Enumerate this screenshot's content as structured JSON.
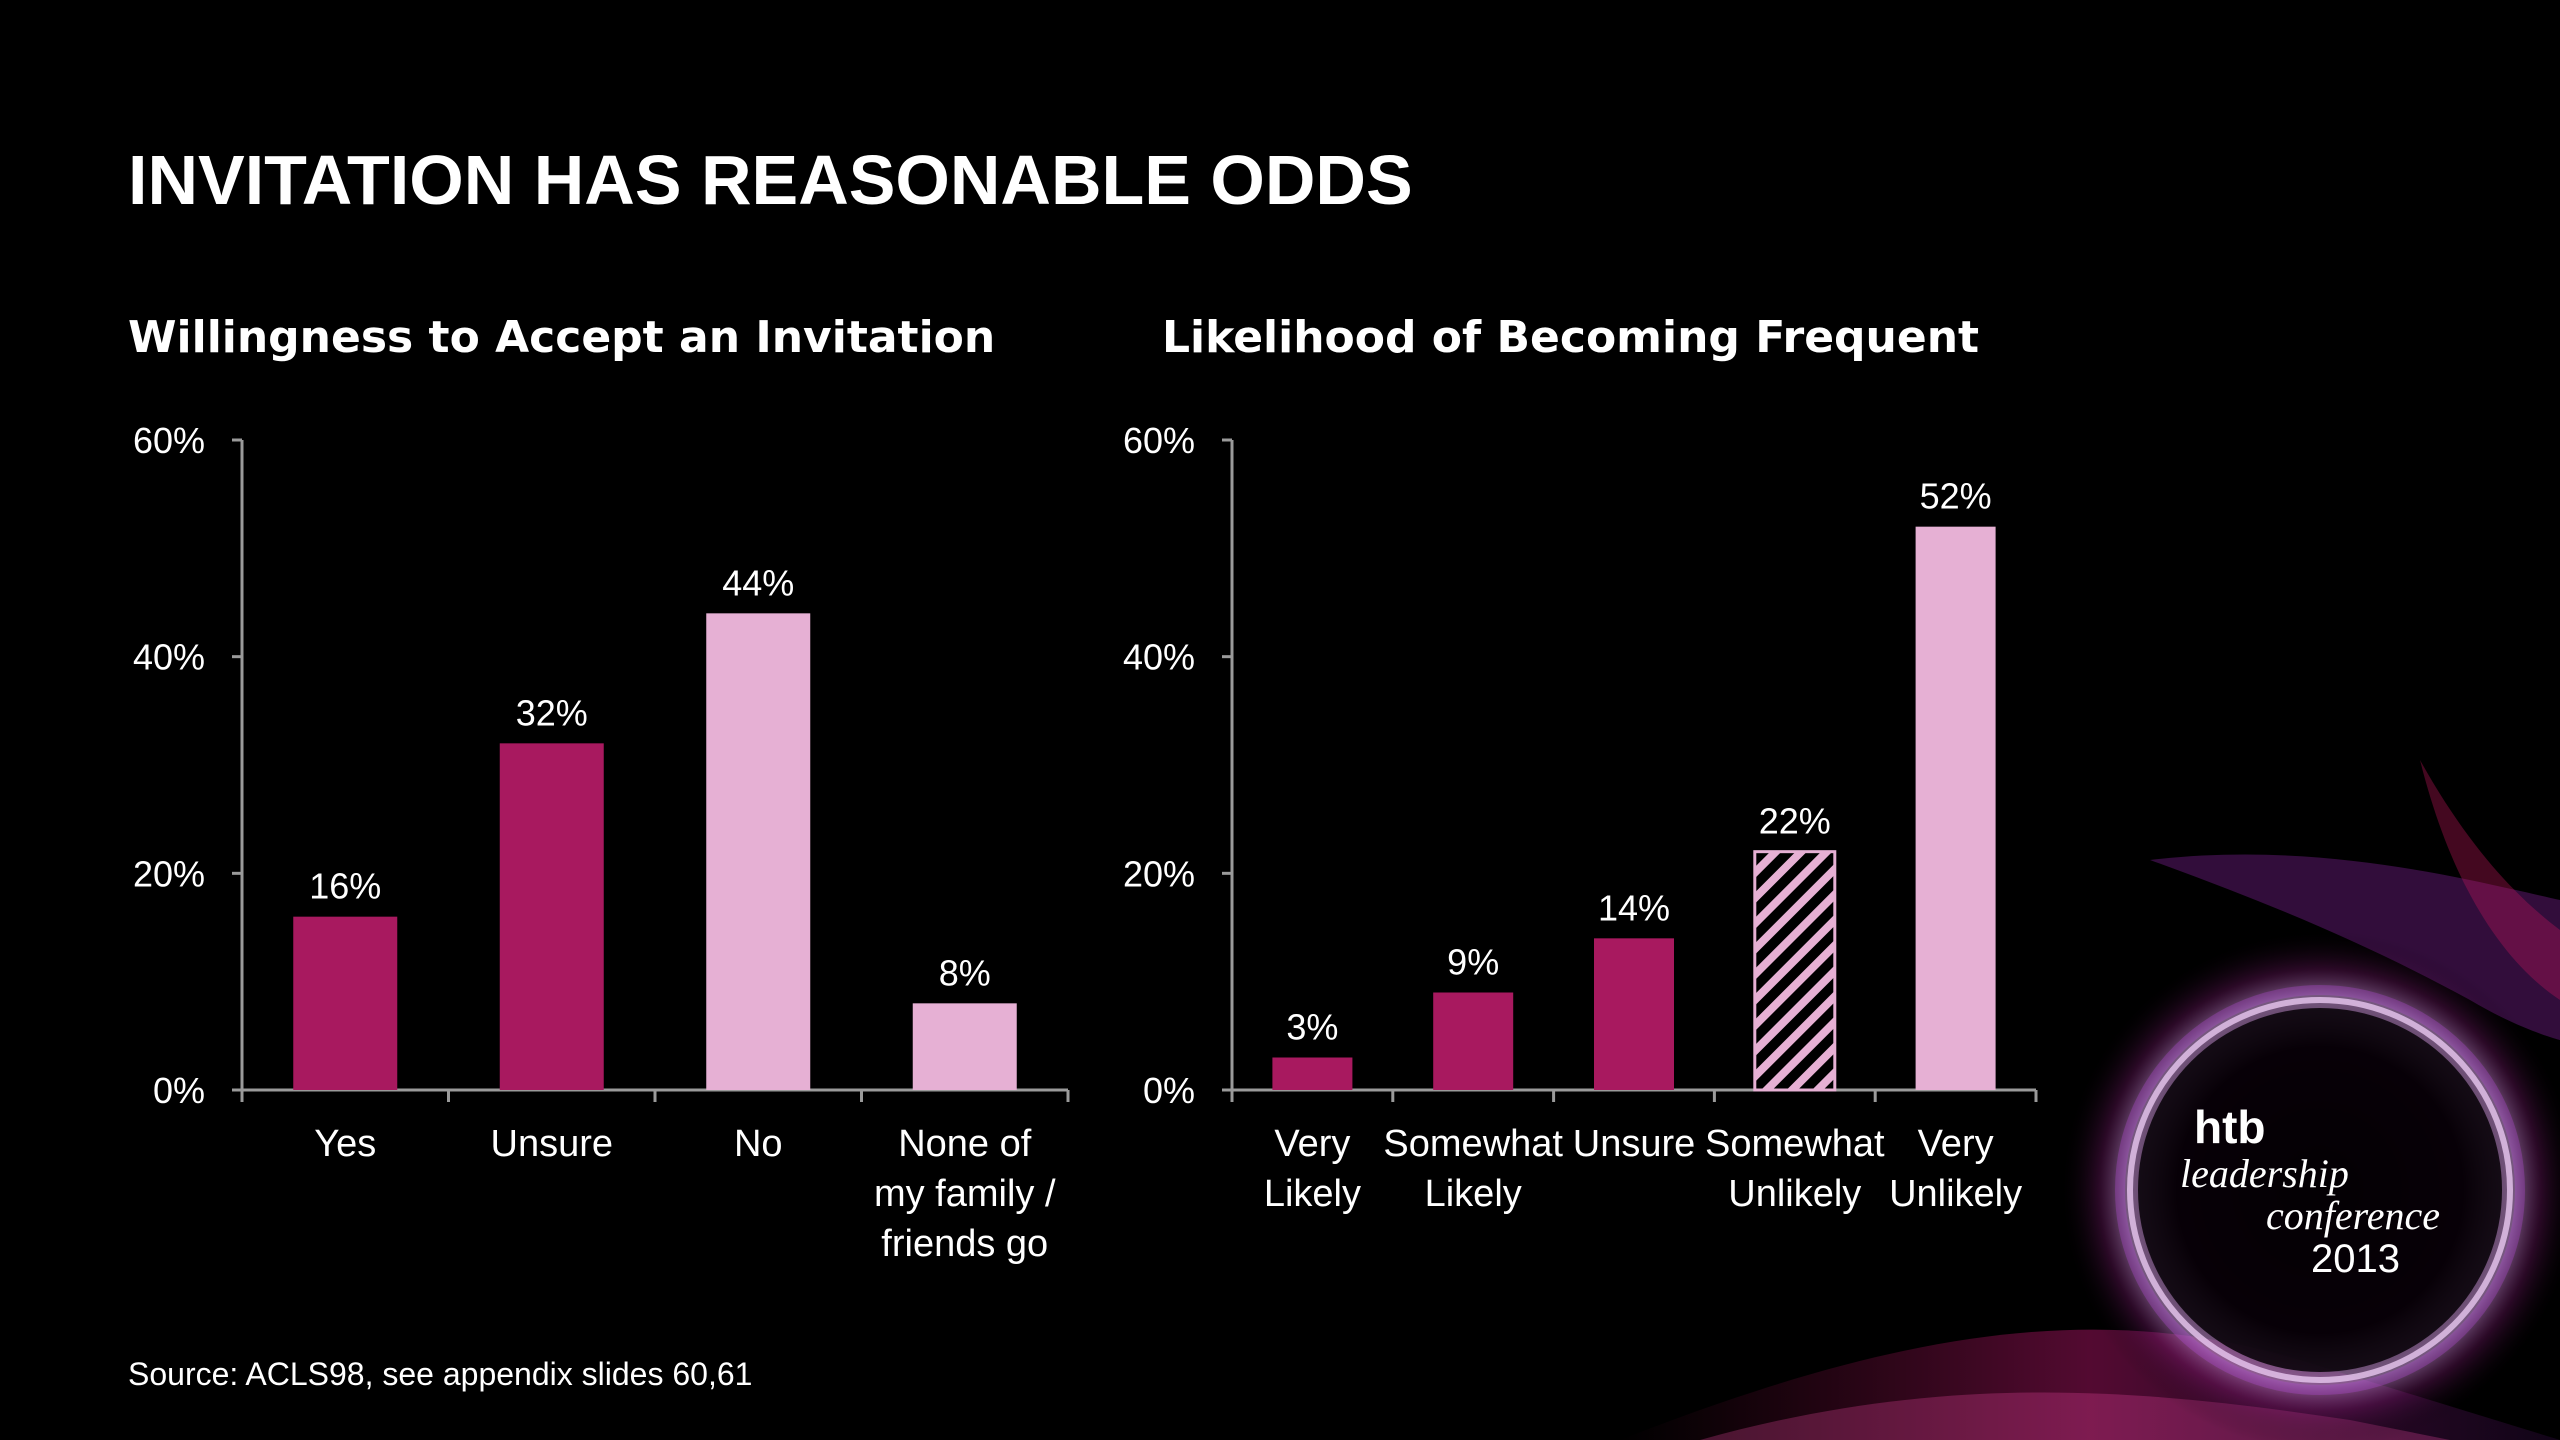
{
  "slide": {
    "title": "INVITATION HAS REASONABLE ODDS",
    "source": "Source: ACLS98, see appendix slides 60,61"
  },
  "logo": {
    "brand": "htb",
    "line1": "leadership",
    "line2": "conference",
    "line3": "2013"
  },
  "colors": {
    "background": "#000000",
    "magenta": "#a8195f",
    "light_pink": "#e6b0d4",
    "axis": "#9a9a9a",
    "text": "#ffffff"
  },
  "chart_data": [
    {
      "type": "bar",
      "title": "Willingness to Accept an Invitation",
      "categories": [
        [
          "Yes"
        ],
        [
          "Unsure"
        ],
        [
          "No"
        ],
        [
          "None of",
          "my family /",
          "friends go"
        ]
      ],
      "values": [
        16,
        32,
        44,
        8
      ],
      "value_labels": [
        "16%",
        "32%",
        "44%",
        "8%"
      ],
      "bar_styles": [
        "magenta",
        "magenta",
        "light_pink",
        "light_pink"
      ],
      "ylim": [
        0,
        60
      ],
      "yticks": [
        0,
        20,
        40,
        60
      ],
      "ytick_labels": [
        "0%",
        "20%",
        "40%",
        "60%"
      ],
      "grid": false,
      "legend": "none"
    },
    {
      "type": "bar",
      "title": "Likelihood of Becoming Frequent",
      "categories": [
        [
          "Very",
          "Likely"
        ],
        [
          "Somewhat",
          "Likely"
        ],
        [
          "Unsure"
        ],
        [
          "Somewhat",
          "Unlikely"
        ],
        [
          "Very",
          "Unlikely"
        ]
      ],
      "values": [
        3,
        9,
        14,
        22,
        52
      ],
      "value_labels": [
        "3%",
        "9%",
        "14%",
        "22%",
        "52%"
      ],
      "bar_styles": [
        "magenta",
        "magenta",
        "magenta",
        "hatched",
        "light_pink"
      ],
      "ylim": [
        0,
        60
      ],
      "yticks": [
        0,
        20,
        40,
        60
      ],
      "ytick_labels": [
        "0%",
        "20%",
        "40%",
        "60%"
      ],
      "grid": false,
      "legend": "none"
    }
  ]
}
